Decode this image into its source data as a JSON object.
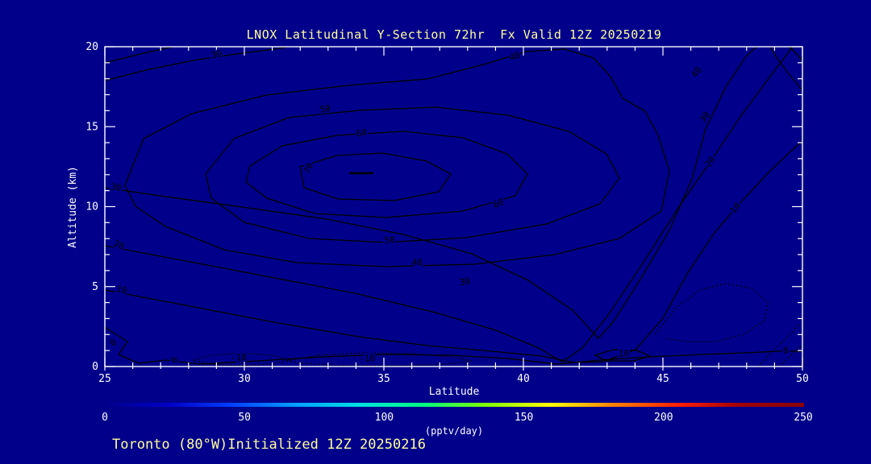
{
  "colors": {
    "background": "#00008B",
    "contour_line": "#000000",
    "axis": "#FFFFFF",
    "annotation": "#FFFF9C"
  },
  "chart_data": {
    "type": "contour",
    "title": "LNOX Latitudinal Y-Section 72hr  Fx Valid 12Z 20250219",
    "footer": "Toronto (80°W)Initialized 12Z 20250216",
    "xlabel": "Latitude",
    "ylabel": "Altitude (km)",
    "axes": {
      "x": {
        "min": 25,
        "max": 50,
        "major_ticks": [
          25,
          30,
          35,
          40,
          45,
          50
        ],
        "minor_tick_interval": 1
      },
      "y": {
        "min": 0,
        "max": 20,
        "major_ticks": [
          0,
          5,
          10,
          15,
          20
        ],
        "minor_tick_interval": 1
      }
    },
    "contour": {
      "interval": 10,
      "levels": [
        -10,
        0,
        10,
        20,
        30,
        40,
        50,
        60,
        70
      ],
      "negative_levels_style": "dotted",
      "maximum": {
        "lat": 34.3,
        "alt_km": 12.1,
        "approx_value": 75
      }
    },
    "contour_labels": [
      {
        "value": 30,
        "lat": 29.0,
        "alt": 19.5,
        "rot": -10
      },
      {
        "value": 40,
        "lat": 39.7,
        "alt": 19.4,
        "rot": -20
      },
      {
        "value": 50,
        "lat": 32.9,
        "alt": 16.1,
        "rot": -8
      },
      {
        "value": 60,
        "lat": 34.2,
        "alt": 14.6,
        "rot": -10
      },
      {
        "value": 70,
        "lat": 32.3,
        "alt": 12.4,
        "rot": -65
      },
      {
        "value": 60,
        "lat": 39.1,
        "alt": 10.2,
        "rot": -25
      },
      {
        "value": 50,
        "lat": 35.2,
        "alt": 7.9,
        "rot": -3
      },
      {
        "value": 40,
        "lat": 36.2,
        "alt": 6.5,
        "rot": 0
      },
      {
        "value": 30,
        "lat": 37.9,
        "alt": 5.3,
        "rot": -10
      },
      {
        "value": 30,
        "lat": 25.4,
        "alt": 11.2,
        "rot": 8
      },
      {
        "value": 20,
        "lat": 25.5,
        "alt": 7.6,
        "rot": 25
      },
      {
        "value": 10,
        "lat": 25.6,
        "alt": 4.8,
        "rot": 15
      },
      {
        "value": 0,
        "lat": 25.3,
        "alt": 1.5,
        "rot": -35
      },
      {
        "value": 0,
        "lat": 27.5,
        "alt": 0.4,
        "rot": -60
      },
      {
        "value": 40,
        "lat": 46.2,
        "alt": 18.4,
        "rot": -52
      },
      {
        "value": 30,
        "lat": 46.5,
        "alt": 15.6,
        "rot": -52
      },
      {
        "value": 20,
        "lat": 46.7,
        "alt": 12.8,
        "rot": -52
      },
      {
        "value": 10,
        "lat": 47.6,
        "alt": 9.9,
        "rot": -52
      },
      {
        "value": 10,
        "lat": 43.6,
        "alt": 0.8,
        "rot": 0
      },
      {
        "value": 0,
        "lat": 49.4,
        "alt": 1.0,
        "rot": -5
      },
      {
        "value": -10,
        "lat": 29.8,
        "alt": 0.55,
        "rot": -5
      },
      {
        "value": -10,
        "lat": 34.4,
        "alt": 0.5,
        "rot": -3
      }
    ],
    "colorbar": {
      "min": 0,
      "max": 250,
      "tick_values": [
        0,
        50,
        100,
        150,
        200,
        250
      ],
      "units_label": "(pptv/day)",
      "gradient": [
        "#00008B",
        "#0000C8",
        "#0040FF",
        "#00A0FF",
        "#00E0E0",
        "#00FF80",
        "#80FF00",
        "#FFFF00",
        "#FF8000",
        "#FF2000",
        "#A00000",
        "#8B0000"
      ]
    }
  }
}
